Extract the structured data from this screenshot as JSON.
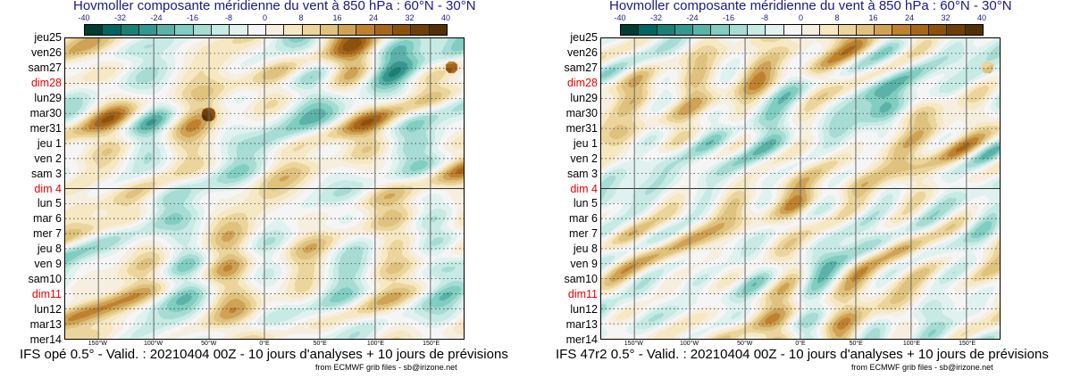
{
  "chart_data": [
    {
      "type": "heatmap",
      "title": "Hovmoller composante méridienne du vent à 850 hPa : 60°N - 30°N",
      "model_label": "IFS opé 0.5° - Valid. : 20210404 00Z - 10 jours d'analyses + 10 jours de prévisions",
      "source": "from ECMWF grib files - sb@irizone.net"
    },
    {
      "type": "heatmap",
      "title": "Hovmoller composante méridienne du vent à 850 hPa : 60°N - 30°N",
      "model_label": "IFS 47r2 0.5° - Valid. : 20210404 00Z - 10 jours d'analyses + 10 jours de prévisions",
      "source": "from ECMWF grib files - sb@irizone.net"
    }
  ],
  "colorbar": {
    "ticks": [
      "-40",
      "-32",
      "-24",
      "-16",
      "-8",
      "0",
      "8",
      "16",
      "24",
      "32",
      "40"
    ],
    "colors": [
      "#003c30",
      "#01665e",
      "#1b7f76",
      "#35978f",
      "#5ab2a8",
      "#80cdc1",
      "#a6dcd4",
      "#c7eae5",
      "#e0f2ef",
      "#f5f5f5",
      "#f6efe0",
      "#f6e8c3",
      "#ebd59c",
      "#dfc27d",
      "#cfa255",
      "#bf812d",
      "#a6661a",
      "#8c510a",
      "#6e3f08",
      "#543005"
    ]
  },
  "days": [
    {
      "l": "jeu25"
    },
    {
      "l": "ven26"
    },
    {
      "l": "sam27"
    },
    {
      "l": "dim28",
      "red": true
    },
    {
      "l": "lun29"
    },
    {
      "l": "mar30"
    },
    {
      "l": "mer31"
    },
    {
      "l": "jeu 1"
    },
    {
      "l": "ven 2"
    },
    {
      "l": "sam 3"
    },
    {
      "l": "dim 4",
      "red": true
    },
    {
      "l": "lun 5"
    },
    {
      "l": "mar 6"
    },
    {
      "l": "mer 7"
    },
    {
      "l": "jeu 8"
    },
    {
      "l": "ven 9"
    },
    {
      "l": "sam10"
    },
    {
      "l": "dim11",
      "red": true
    },
    {
      "l": "lun12"
    },
    {
      "l": "mar13"
    },
    {
      "l": "mer14"
    }
  ],
  "x_ticks": [
    {
      "l": "150°W",
      "lon": -150
    },
    {
      "l": "100°W",
      "lon": -100
    },
    {
      "l": "50°W",
      "lon": -50
    },
    {
      "l": "0°E",
      "lon": 0
    },
    {
      "l": "50°E",
      "lon": 50
    },
    {
      "l": "100°E",
      "lon": 100
    },
    {
      "l": "150°E",
      "lon": 150
    }
  ],
  "x_range": [
    -180,
    180
  ],
  "analysis_forecast_split": "dim 4"
}
